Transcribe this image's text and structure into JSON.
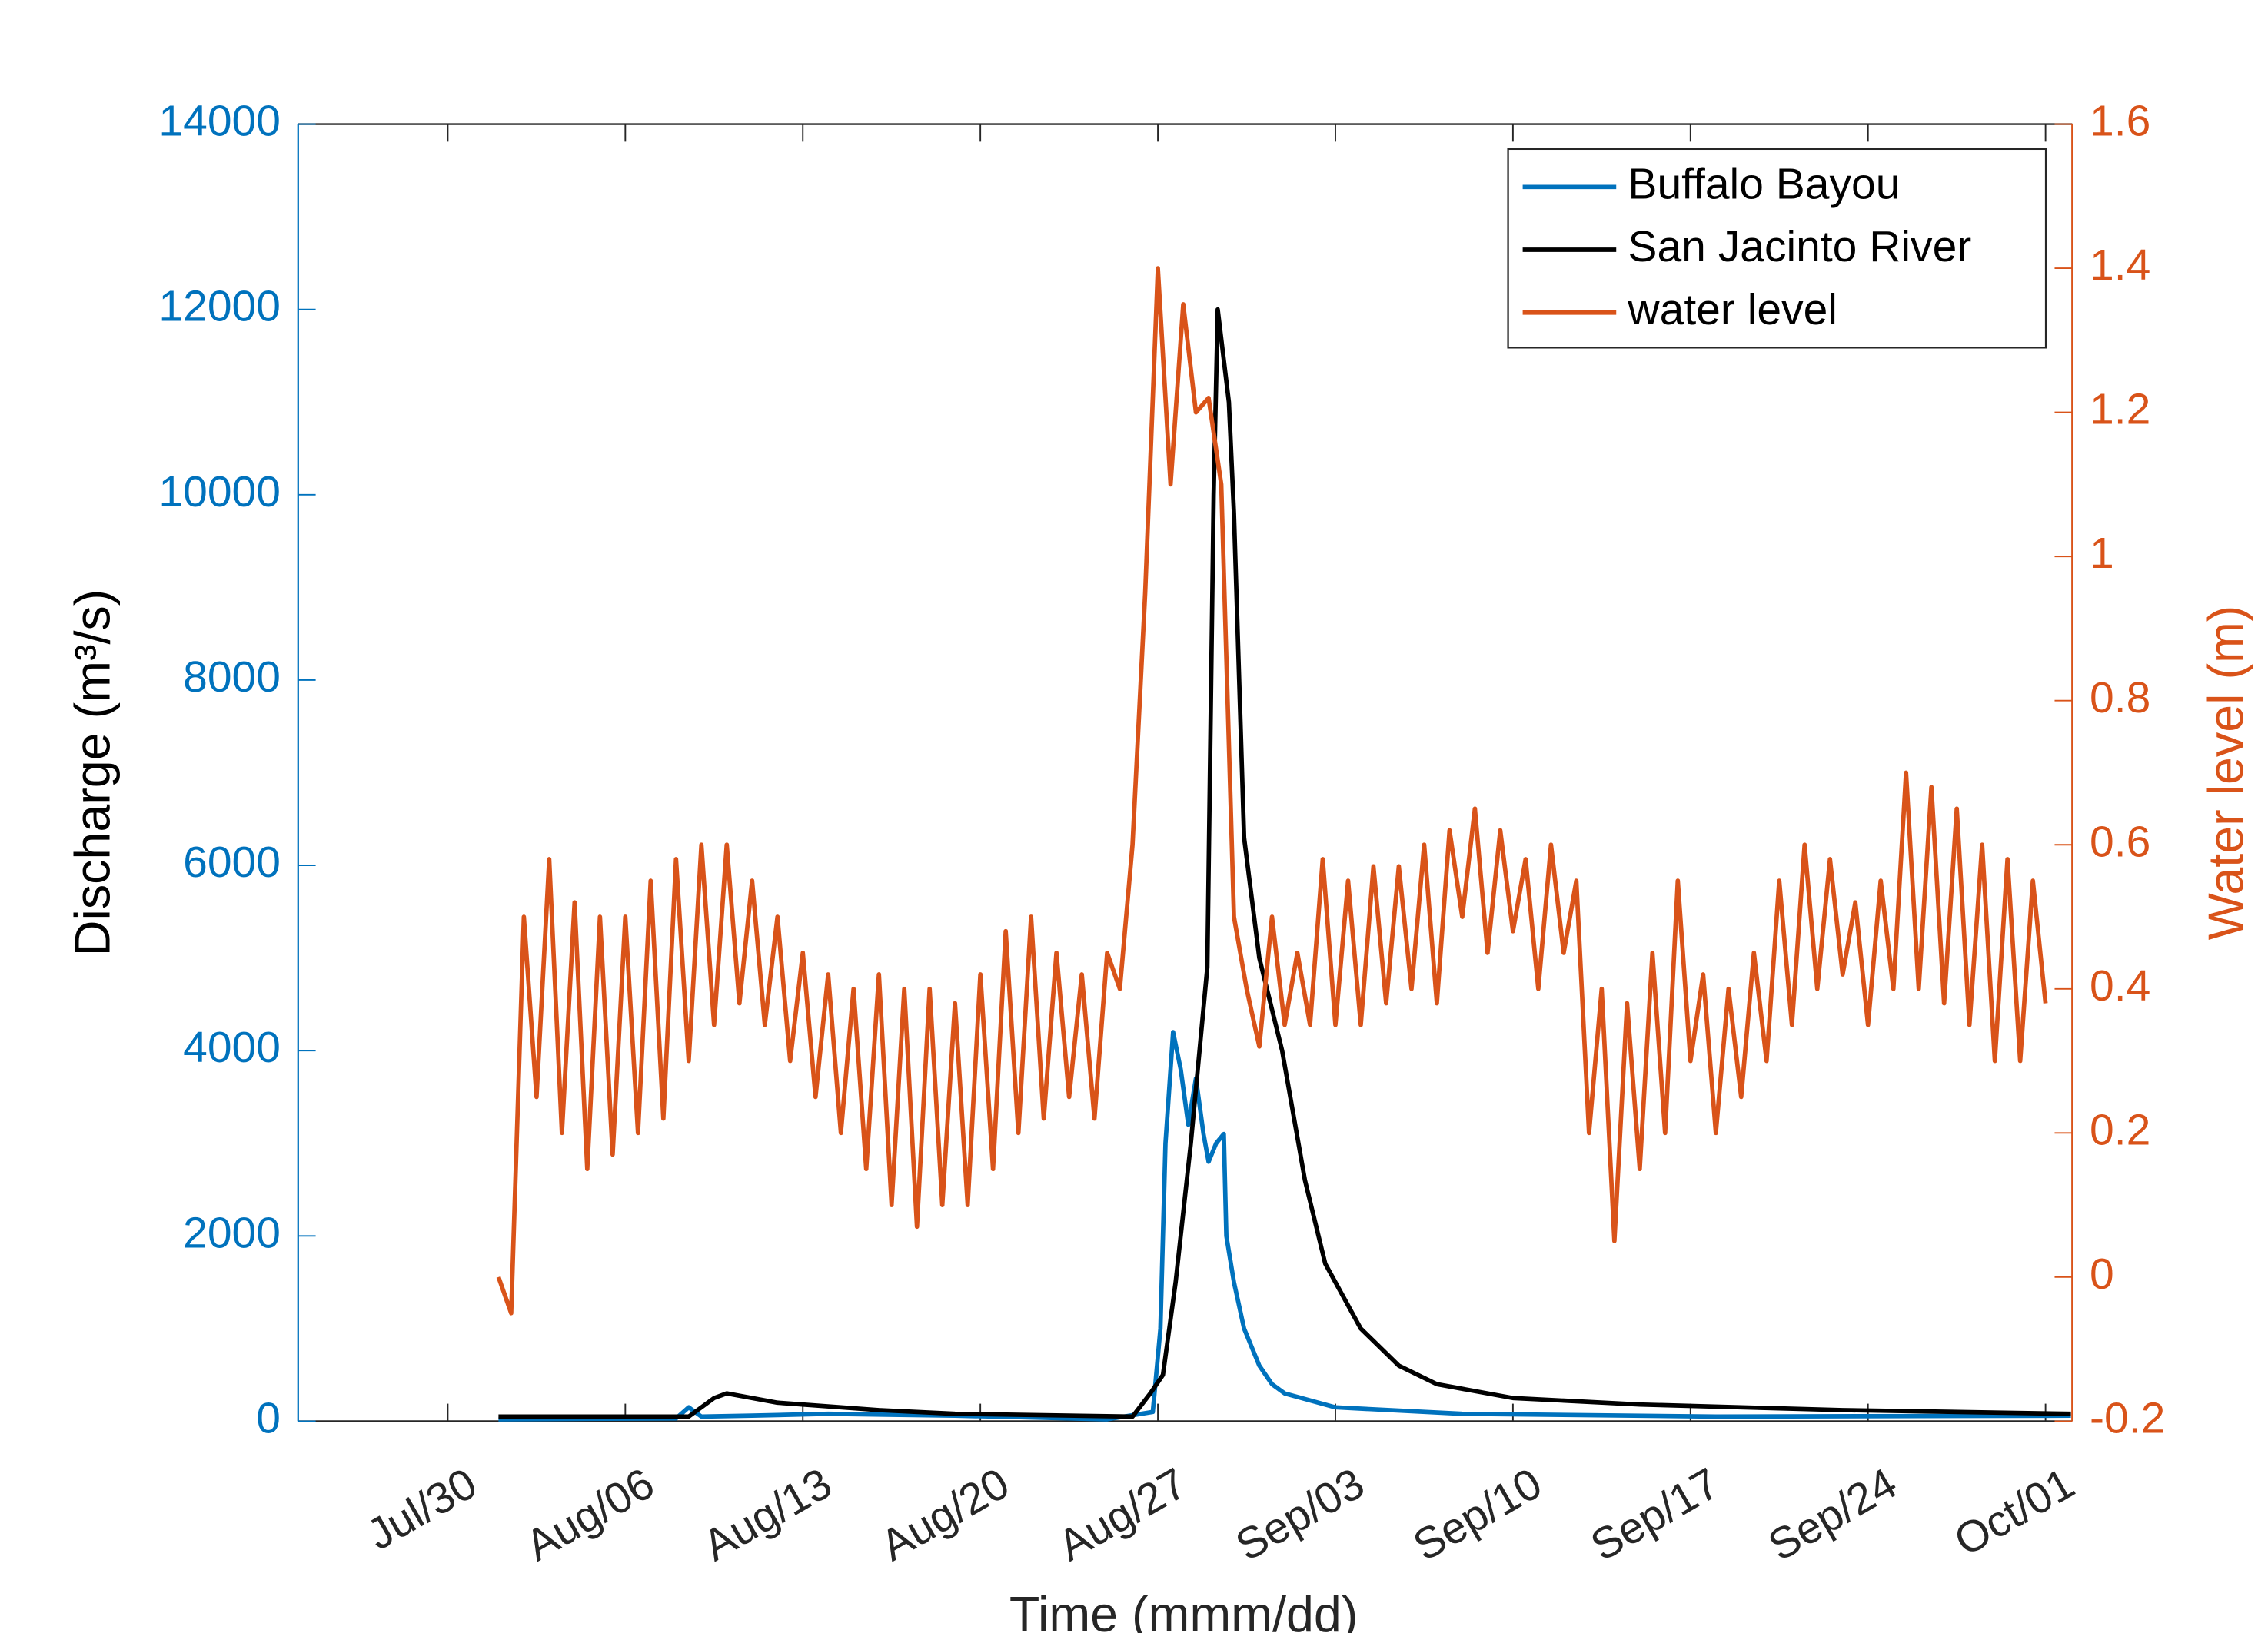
{
  "chart_data": {
    "type": "line",
    "xlabel": "Time (mmm/dd)",
    "ylabel": "Discharge (m³/s)",
    "y2label": "Water level (m)",
    "xlim": [
      -5.9,
      64.05
    ],
    "xticks": [
      {
        "value": 0,
        "label": "Jul/30"
      },
      {
        "value": 7,
        "label": "Aug/06"
      },
      {
        "value": 14,
        "label": "Aug/13"
      },
      {
        "value": 21,
        "label": "Aug/20"
      },
      {
        "value": 28,
        "label": "Aug/27"
      },
      {
        "value": 35,
        "label": "Sep/03"
      },
      {
        "value": 42,
        "label": "Sep/10"
      },
      {
        "value": 49,
        "label": "Sep/17"
      },
      {
        "value": 56,
        "label": "Sep/24"
      },
      {
        "value": 63,
        "label": "Oct/01"
      }
    ],
    "ylim": [
      0,
      14000
    ],
    "yticks": [
      0,
      2000,
      4000,
      6000,
      8000,
      10000,
      12000,
      14000
    ],
    "y2lim": [
      -0.2,
      1.6
    ],
    "y2ticks": [
      -0.2,
      0,
      0.2,
      0.4,
      0.6,
      0.8,
      1,
      1.2,
      1.4,
      1.6
    ],
    "ycolor": "#0072BD",
    "y2color": "#D95319",
    "legend": "upper right",
    "series": [
      {
        "name": "Buffalo Bayou",
        "color": "#0072BD",
        "x": [
          2,
          5,
          9,
          9.5,
          10,
          12,
          15,
          20,
          26,
          27.8,
          28.1,
          28.3,
          28.6,
          28.9,
          29.2,
          29.5,
          29.8,
          30.0,
          30.3,
          30.6,
          30.7,
          31.0,
          31.4,
          32.0,
          32.5,
          33.0,
          35,
          40,
          50,
          64
        ],
        "values": [
          20,
          25,
          30,
          150,
          50,
          60,
          80,
          60,
          20,
          100,
          1000,
          3000,
          4200,
          3800,
          3200,
          3700,
          3100,
          2800,
          3000,
          3100,
          2000,
          1500,
          1000,
          600,
          400,
          300,
          150,
          80,
          50,
          60
        ]
      },
      {
        "name": "San Jacinto River",
        "color": "#000000",
        "x": [
          2,
          9.5,
          10.5,
          11,
          13,
          17,
          20,
          27,
          27.7,
          28.2,
          28.7,
          29.3,
          29.95,
          30.2,
          30.36,
          30.8,
          31.0,
          31.4,
          32,
          32.9,
          33.8,
          34.6,
          36,
          37.5,
          39,
          42,
          47,
          55,
          64
        ],
        "values": [
          50,
          50,
          250,
          300,
          200,
          120,
          80,
          50,
          300,
          500,
          1500,
          3000,
          4900,
          10000,
          12000,
          11000,
          9800,
          6300,
          5000,
          4000,
          2600,
          1700,
          1000,
          600,
          400,
          250,
          180,
          120,
          80
        ]
      },
      {
        "name": "water level",
        "color": "#D95319",
        "axis": "y2",
        "x": [
          2,
          2.5,
          3,
          3.5,
          4,
          4.5,
          5,
          5.5,
          6,
          6.5,
          7,
          7.5,
          8,
          8.5,
          9,
          9.5,
          10,
          10.5,
          11,
          11.5,
          12,
          12.5,
          13,
          13.5,
          14,
          14.5,
          15,
          15.5,
          16,
          16.5,
          17,
          17.5,
          18,
          18.5,
          19,
          19.5,
          20,
          20.5,
          21,
          21.5,
          22,
          22.5,
          23,
          23.5,
          24,
          24.5,
          25,
          25.5,
          26,
          26.5,
          27,
          27.5,
          28,
          28.5,
          29,
          29.5,
          30,
          30.5,
          31,
          31.5,
          32,
          32.5,
          33,
          33.5,
          34,
          34.5,
          35,
          35.5,
          36,
          36.5,
          37,
          37.5,
          38,
          38.5,
          39,
          39.5,
          40,
          40.5,
          41,
          41.5,
          42,
          42.5,
          43,
          43.5,
          44,
          44.5,
          45,
          45.5,
          46,
          46.5,
          47,
          47.5,
          48,
          48.5,
          49,
          49.5,
          50,
          50.5,
          51,
          51.5,
          52,
          52.5,
          53,
          53.5,
          54,
          54.5,
          55,
          55.5,
          56,
          56.5,
          57,
          57.5,
          58,
          58.5,
          59,
          59.5,
          60,
          60.5,
          61,
          61.5,
          62,
          62.5,
          63
        ],
        "values": [
          0.0,
          -0.05,
          0.5,
          0.25,
          0.58,
          0.2,
          0.52,
          0.15,
          0.5,
          0.17,
          0.5,
          0.2,
          0.55,
          0.22,
          0.58,
          0.3,
          0.6,
          0.35,
          0.6,
          0.38,
          0.55,
          0.35,
          0.5,
          0.3,
          0.45,
          0.25,
          0.42,
          0.2,
          0.4,
          0.15,
          0.42,
          0.1,
          0.4,
          0.07,
          0.4,
          0.1,
          0.38,
          0.1,
          0.42,
          0.15,
          0.48,
          0.2,
          0.5,
          0.22,
          0.45,
          0.25,
          0.42,
          0.22,
          0.45,
          0.4,
          0.6,
          0.95,
          1.4,
          1.1,
          1.35,
          1.2,
          1.22,
          1.1,
          0.5,
          0.4,
          0.32,
          0.5,
          0.35,
          0.45,
          0.35,
          0.58,
          0.35,
          0.55,
          0.35,
          0.57,
          0.38,
          0.57,
          0.4,
          0.6,
          0.38,
          0.62,
          0.5,
          0.65,
          0.45,
          0.62,
          0.48,
          0.58,
          0.4,
          0.6,
          0.45,
          0.55,
          0.2,
          0.4,
          0.05,
          0.38,
          0.15,
          0.45,
          0.2,
          0.55,
          0.3,
          0.42,
          0.2,
          0.4,
          0.25,
          0.45,
          0.3,
          0.55,
          0.35,
          0.6,
          0.4,
          0.58,
          0.42,
          0.52,
          0.35,
          0.55,
          0.4,
          0.7,
          0.4,
          0.68,
          0.38,
          0.65,
          0.35,
          0.6,
          0.3,
          0.58,
          0.3,
          0.55,
          0.38
        ]
      }
    ]
  }
}
